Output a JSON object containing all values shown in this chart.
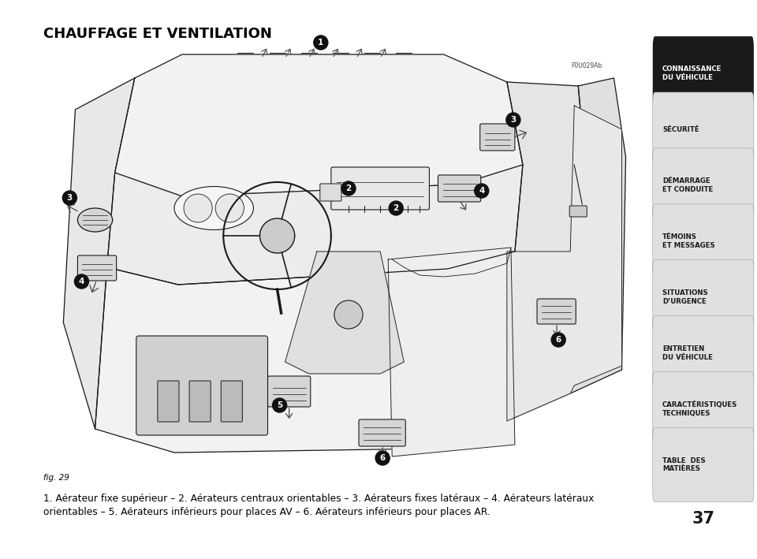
{
  "title": "CHAUFFAGE ET VENTILATION",
  "fig_label": "fig. 29",
  "fig_code": "F0U029Ab",
  "caption_line1": "1. Aérateur fixe supérieur – 2. Aérateurs centraux orientables – 3. Aérateurs fixes latéraux – 4. Aérateurs latéraux",
  "caption_line2": "orientables – 5. Aérateurs inférieurs pour places AV – 6. Aérateurs inférieurs pour places AR.",
  "page_number": "37",
  "sidebar_items": [
    {
      "text": "CONNAISSANCE\nDU VÉHICULE",
      "active": true
    },
    {
      "text": "SÉCURITÉ",
      "active": false
    },
    {
      "text": "DÉMARRAGE\nET CONDUITE",
      "active": false
    },
    {
      "text": "TÉMOINS\nET MESSAGES",
      "active": false
    },
    {
      "text": "SITUATIONS \nD’URGENCE",
      "active": false
    },
    {
      "text": "ENTRETIEN\nDU VÉHICULE",
      "active": false
    },
    {
      "text": "CARACTÉRISTIQUES\nTECHNIQUES",
      "active": false
    },
    {
      "text": "TABLE  DES \nMATIÈRES",
      "active": false
    }
  ],
  "bg_color": "#ffffff",
  "sidebar_bg": "#e0e0e0",
  "sidebar_active_bg": "#1a1a1a",
  "sidebar_active_text": "#ffffff",
  "sidebar_inactive_text": "#1a1a1a",
  "title_fontsize": 13,
  "caption_fontsize": 8.8,
  "sidebar_fontsize": 6.2,
  "page_num_fontsize": 15
}
